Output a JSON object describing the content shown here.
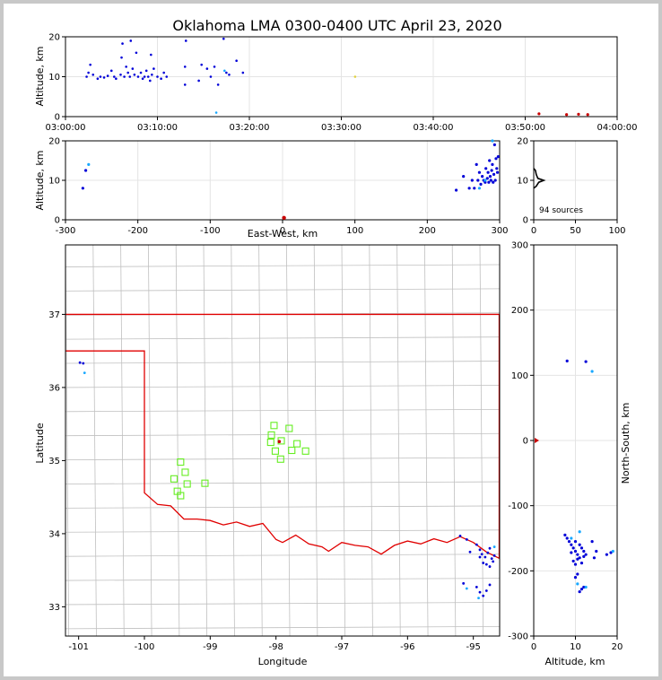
{
  "chart_data": [
    {
      "id": "time-height",
      "type": "scatter",
      "title": "Oklahoma LMA 0300-0400 UTC April 23, 2020",
      "xlabel": "",
      "ylabel": "Altitude, km",
      "x_ticks": [
        "03:00:00",
        "03:10:00",
        "03:20:00",
        "03:30:00",
        "03:40:00",
        "03:50:00",
        "04:00:00"
      ],
      "xlim_minutes": [
        0,
        60
      ],
      "ylim": [
        0,
        20
      ],
      "y_ticks": [
        0,
        10,
        20
      ],
      "grid": true,
      "points_minutes_km": [
        [
          2.3,
          10
        ],
        [
          2.5,
          11
        ],
        [
          2.7,
          13
        ],
        [
          3,
          10.5
        ],
        [
          3.5,
          9.5
        ],
        [
          3.8,
          10
        ],
        [
          4.2,
          9.8
        ],
        [
          4.6,
          10.2
        ],
        [
          5,
          11.5
        ],
        [
          5.3,
          10
        ],
        [
          5.5,
          9.5
        ],
        [
          6,
          10.5
        ],
        [
          6.1,
          14.8
        ],
        [
          6.2,
          18.3
        ],
        [
          6.4,
          10
        ],
        [
          6.6,
          12.5
        ],
        [
          6.8,
          11
        ],
        [
          7,
          10
        ],
        [
          7.1,
          19
        ],
        [
          7.3,
          12
        ],
        [
          7.5,
          10.5
        ],
        [
          7.7,
          16
        ],
        [
          7.9,
          10
        ],
        [
          8.2,
          11
        ],
        [
          8.4,
          9.5
        ],
        [
          8.6,
          10
        ],
        [
          8.8,
          11.5
        ],
        [
          9,
          10
        ],
        [
          9.2,
          9
        ],
        [
          9.3,
          15.5
        ],
        [
          9.4,
          10.5
        ],
        [
          9.6,
          12
        ],
        [
          10,
          10
        ],
        [
          10.4,
          9.5
        ],
        [
          10.7,
          11
        ],
        [
          11,
          10
        ],
        [
          13,
          8
        ],
        [
          13.1,
          19
        ],
        [
          13,
          12.5
        ],
        [
          14.5,
          9
        ],
        [
          14.8,
          13
        ],
        [
          15.4,
          12
        ],
        [
          15.8,
          10
        ],
        [
          16.2,
          12.5
        ],
        [
          16.6,
          8
        ],
        [
          17.2,
          19.5
        ],
        [
          17.5,
          11
        ],
        [
          17.8,
          10.5
        ],
        [
          18.6,
          14
        ],
        [
          19.3,
          11
        ]
      ],
      "points_cyan": [
        [
          17.3,
          11.5
        ],
        [
          16.4,
          1
        ]
      ],
      "points_yellow": [
        [
          31.5,
          10
        ]
      ],
      "points_red": [
        [
          51.5,
          0.7
        ],
        [
          54.5,
          0.5
        ],
        [
          55.8,
          0.6
        ],
        [
          56.8,
          0.5
        ]
      ]
    },
    {
      "id": "plan-ew-alt",
      "type": "scatter",
      "xlabel": "East-West, km",
      "ylabel": "Altitude, km",
      "xlim": [
        -300,
        300
      ],
      "x_ticks": [
        -300,
        -200,
        -100,
        0,
        100,
        200,
        300
      ],
      "ylim": [
        0,
        20
      ],
      "y_ticks": [
        0,
        10,
        20
      ],
      "grid": true,
      "points_blue": [
        [
          -276,
          8
        ],
        [
          -272,
          12.5
        ],
        [
          240,
          7.5
        ],
        [
          250,
          11
        ],
        [
          258,
          8
        ],
        [
          262,
          10
        ],
        [
          265,
          8
        ],
        [
          268,
          14
        ],
        [
          270,
          10
        ],
        [
          272,
          12
        ],
        [
          274,
          9
        ],
        [
          276,
          11
        ],
        [
          278,
          10
        ],
        [
          280,
          9.5
        ],
        [
          281,
          13
        ],
        [
          283,
          10.5
        ],
        [
          284,
          12
        ],
        [
          285,
          9.5
        ],
        [
          286,
          15
        ],
        [
          287,
          11
        ],
        [
          288,
          10
        ],
        [
          289,
          12.5
        ],
        [
          290,
          14
        ],
        [
          291,
          9.5
        ],
        [
          292,
          11.5
        ],
        [
          293,
          19
        ],
        [
          294,
          10
        ],
        [
          295,
          15.5
        ],
        [
          296,
          13
        ],
        [
          297,
          12
        ],
        [
          298,
          16
        ]
      ],
      "points_cyan": [
        [
          -268,
          14
        ],
        [
          272,
          8
        ],
        [
          280,
          10
        ],
        [
          290,
          20
        ]
      ],
      "points_red": [
        [
          2,
          0.5
        ]
      ]
    },
    {
      "id": "histogram",
      "type": "line",
      "xlim": [
        0,
        100
      ],
      "x_ticks": [
        0,
        50,
        100
      ],
      "ylim": [
        0,
        20
      ],
      "y_ticks": [
        0,
        10,
        20
      ],
      "annotation": "94 sources",
      "grid": true,
      "profile_count_km": [
        [
          0,
          8
        ],
        [
          3,
          8.5
        ],
        [
          6,
          9.5
        ],
        [
          12,
          10
        ],
        [
          5,
          10.5
        ],
        [
          3,
          11.5
        ],
        [
          2,
          12.5
        ],
        [
          0,
          13
        ]
      ]
    },
    {
      "id": "map",
      "type": "scatter",
      "xlabel": "Longitude",
      "ylabel": "Latitude",
      "xlim": [
        -101.2,
        -94.6
      ],
      "ylim": [
        32.6,
        37.95
      ],
      "x_ticks": [
        -101,
        -100,
        -99,
        -98,
        -97,
        -96,
        -95
      ],
      "y_ticks": [
        33,
        34,
        35,
        36,
        37
      ],
      "stations_lonlat": [
        [
          -98.03,
          35.48
        ],
        [
          -97.8,
          35.44
        ],
        [
          -98.07,
          35.35
        ],
        [
          -98.08,
          35.25
        ],
        [
          -97.92,
          35.27
        ],
        [
          -97.68,
          35.23
        ],
        [
          -98.01,
          35.13
        ],
        [
          -97.76,
          35.14
        ],
        [
          -97.55,
          35.13
        ],
        [
          -97.93,
          35.02
        ],
        [
          -99.45,
          34.98
        ],
        [
          -99.38,
          34.84
        ],
        [
          -99.55,
          34.75
        ],
        [
          -99.35,
          34.68
        ],
        [
          -99.08,
          34.69
        ],
        [
          -99.5,
          34.58
        ],
        [
          -99.45,
          34.52
        ]
      ],
      "points_blue": [
        [
          -100.98,
          36.34
        ],
        [
          -100.93,
          36.33
        ],
        [
          -95.2,
          33.97
        ],
        [
          -95.1,
          33.92
        ],
        [
          -94.95,
          33.85
        ],
        [
          -94.9,
          33.78
        ],
        [
          -94.87,
          33.72
        ],
        [
          -94.82,
          33.68
        ],
        [
          -94.78,
          33.74
        ],
        [
          -94.75,
          33.8
        ],
        [
          -94.72,
          33.66
        ],
        [
          -94.7,
          33.62
        ],
        [
          -94.8,
          33.58
        ],
        [
          -94.75,
          33.55
        ],
        [
          -94.68,
          33.7
        ],
        [
          -94.85,
          33.6
        ],
        [
          -94.9,
          33.68
        ],
        [
          -95.05,
          33.75
        ],
        [
          -94.95,
          33.27
        ],
        [
          -94.9,
          33.2
        ],
        [
          -94.85,
          33.15
        ],
        [
          -94.8,
          33.22
        ],
        [
          -94.75,
          33.3
        ],
        [
          -95.15,
          33.32
        ]
      ],
      "points_cyan": [
        [
          -100.91,
          36.2
        ],
        [
          -94.68,
          33.82
        ],
        [
          -95.1,
          33.25
        ],
        [
          -94.92,
          33.12
        ]
      ],
      "points_red": [
        [
          -97.95,
          35.26
        ]
      ],
      "state_line_lat": 37.0,
      "panhandle_lat": 36.5,
      "panhandle_lon": -100.0
    },
    {
      "id": "alt-ns",
      "type": "scatter",
      "xlabel": "Altitude, km",
      "ylabel": "North-South, km",
      "xlim": [
        0,
        20
      ],
      "x_ticks": [
        0,
        10,
        20
      ],
      "ylim": [
        -300,
        300
      ],
      "y_ticks": [
        -300,
        -200,
        -100,
        0,
        100,
        200,
        300
      ],
      "points_blue": [
        [
          8,
          122
        ],
        [
          12.5,
          121
        ],
        [
          7.5,
          -145
        ],
        [
          8,
          -150
        ],
        [
          8.5,
          -155
        ],
        [
          9,
          -160
        ],
        [
          9.5,
          -165
        ],
        [
          10,
          -170
        ],
        [
          10.5,
          -175
        ],
        [
          11,
          -180
        ],
        [
          9.5,
          -185
        ],
        [
          10,
          -190
        ],
        [
          11,
          -160
        ],
        [
          11.5,
          -165
        ],
        [
          12,
          -170
        ],
        [
          12.5,
          -175
        ],
        [
          10,
          -155
        ],
        [
          9,
          -172
        ],
        [
          10.5,
          -182
        ],
        [
          11.5,
          -188
        ],
        [
          12,
          -178
        ],
        [
          14,
          -155
        ],
        [
          15,
          -170
        ],
        [
          14.5,
          -180
        ],
        [
          17.5,
          -175
        ],
        [
          18.5,
          -172
        ],
        [
          10,
          -210
        ],
        [
          10.5,
          -205
        ],
        [
          11,
          -232
        ],
        [
          11.5,
          -228
        ],
        [
          12,
          -225
        ]
      ],
      "points_cyan": [
        [
          14,
          106
        ],
        [
          11,
          -140
        ],
        [
          9,
          -150
        ],
        [
          10.5,
          -220
        ],
        [
          19,
          -170
        ],
        [
          12.5,
          -225
        ]
      ],
      "points_red": [
        [
          0.5,
          0
        ]
      ]
    }
  ]
}
